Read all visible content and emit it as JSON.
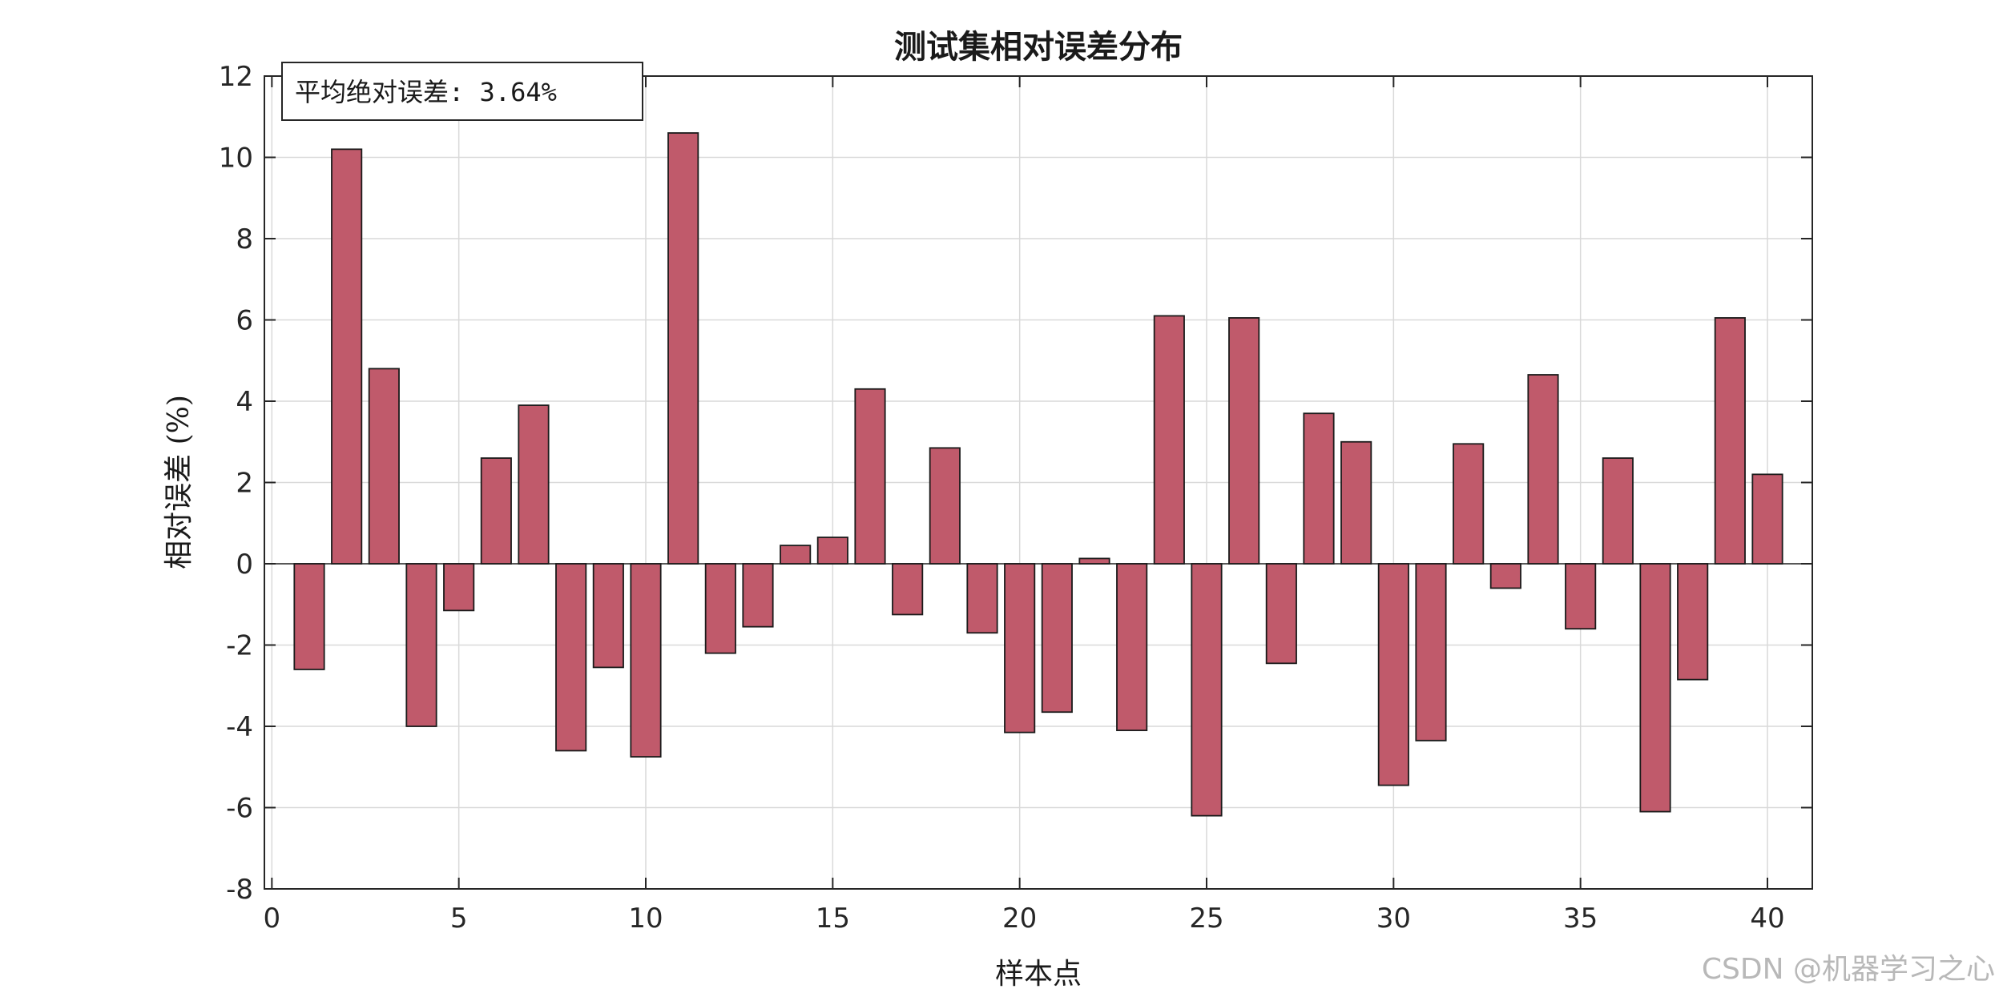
{
  "chart_data": {
    "type": "bar",
    "title": "测试集相对误差分布",
    "xlabel": "样本点",
    "ylabel": "相对误差 (%)",
    "annotation": "平均绝对误差: 3.64%",
    "x": [
      1,
      2,
      3,
      4,
      5,
      6,
      7,
      8,
      9,
      10,
      11,
      12,
      13,
      14,
      15,
      16,
      17,
      18,
      19,
      20,
      21,
      22,
      23,
      24,
      25,
      26,
      27,
      28,
      29,
      30,
      31,
      32,
      33,
      34,
      35,
      36,
      37,
      38,
      39,
      40
    ],
    "values": [
      -2.6,
      10.2,
      4.8,
      -4.0,
      -1.15,
      2.6,
      3.9,
      -4.6,
      -2.55,
      -4.75,
      10.6,
      -2.2,
      -1.55,
      0.45,
      0.65,
      4.3,
      -1.25,
      2.85,
      -1.7,
      -4.15,
      -3.65,
      0.13,
      -4.1,
      6.1,
      -6.2,
      6.05,
      -2.45,
      3.7,
      3.0,
      -5.45,
      -4.35,
      2.95,
      -0.6,
      4.65,
      -1.6,
      2.6,
      -6.1,
      -2.85,
      6.05,
      2.2
    ],
    "xlim": [
      -0.2,
      41.2
    ],
    "ylim": [
      -8,
      12
    ],
    "xticks": [
      0,
      5,
      10,
      15,
      20,
      25,
      30,
      35,
      40
    ],
    "yticks": [
      -8,
      -6,
      -4,
      -2,
      0,
      2,
      4,
      6,
      8,
      10,
      12
    ],
    "bar_color": "#c05a6b",
    "grid": true
  },
  "watermark": "CSDN @机器学习之心"
}
